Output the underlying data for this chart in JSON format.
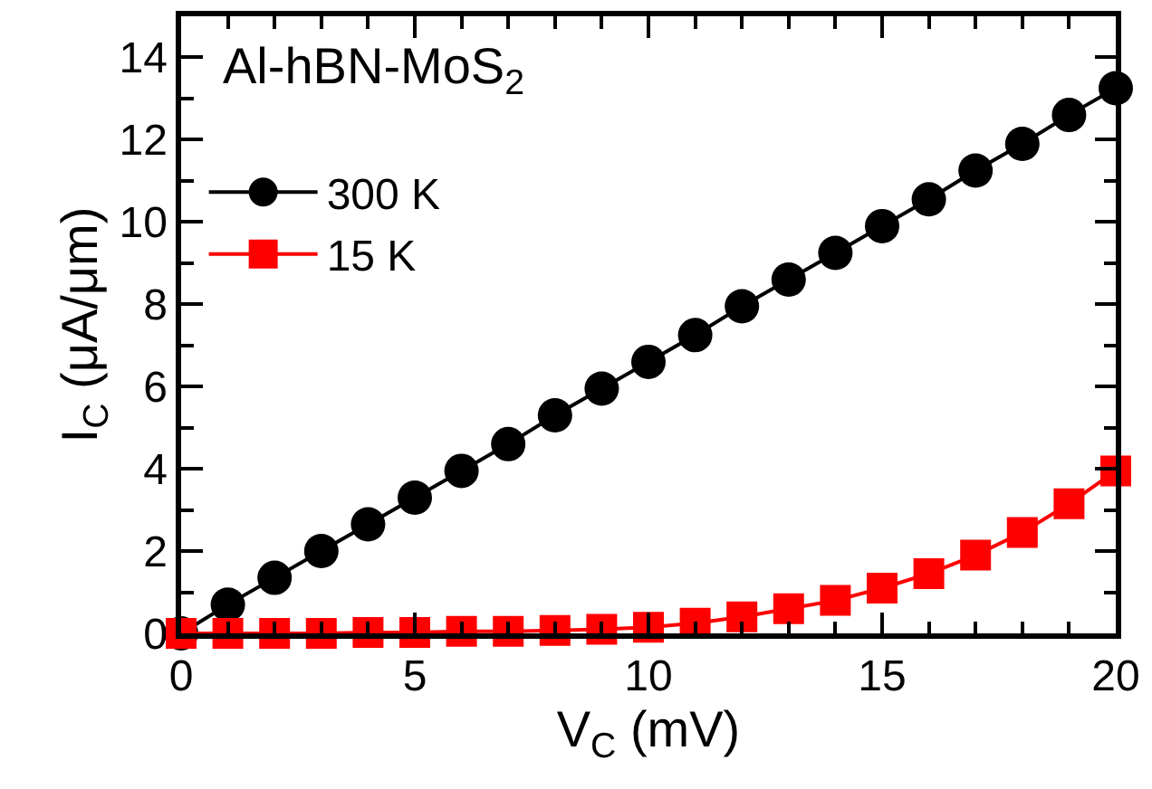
{
  "chart_data": {
    "type": "line",
    "xlabel": "V$_{C}$ (mV)",
    "ylabel": "I$_{C}$ (μA/μm)",
    "annotations": [
      "Al-hBN-MoS$_{2}$"
    ],
    "x": [
      0,
      1,
      2,
      3,
      4,
      5,
      6,
      7,
      8,
      9,
      10,
      11,
      12,
      13,
      14,
      15,
      16,
      17,
      18,
      19,
      20
    ],
    "series": [
      {
        "name": "300 K",
        "color": "#000000",
        "marker": "circle",
        "values": [
          0,
          0.7,
          1.35,
          2.0,
          2.65,
          3.3,
          3.95,
          4.6,
          5.3,
          5.95,
          6.6,
          7.25,
          7.95,
          8.6,
          9.25,
          9.9,
          10.55,
          11.25,
          11.9,
          12.6,
          13.25
        ]
      },
      {
        "name": "15 K",
        "color": "#ff0000",
        "marker": "square",
        "values": [
          0,
          0,
          0,
          0,
          0.02,
          0.02,
          0.05,
          0.05,
          0.07,
          0.1,
          0.15,
          0.25,
          0.4,
          0.6,
          0.8,
          1.1,
          1.45,
          1.9,
          2.45,
          3.15,
          3.95
        ]
      }
    ],
    "xlim": [
      0,
      20
    ],
    "xticks": [
      0,
      5,
      10,
      15,
      20
    ],
    "ylim": [
      0,
      15
    ],
    "yticks": [
      0,
      2,
      4,
      6,
      8,
      10,
      12,
      14
    ],
    "legend": "top left",
    "line_style": "solid"
  }
}
